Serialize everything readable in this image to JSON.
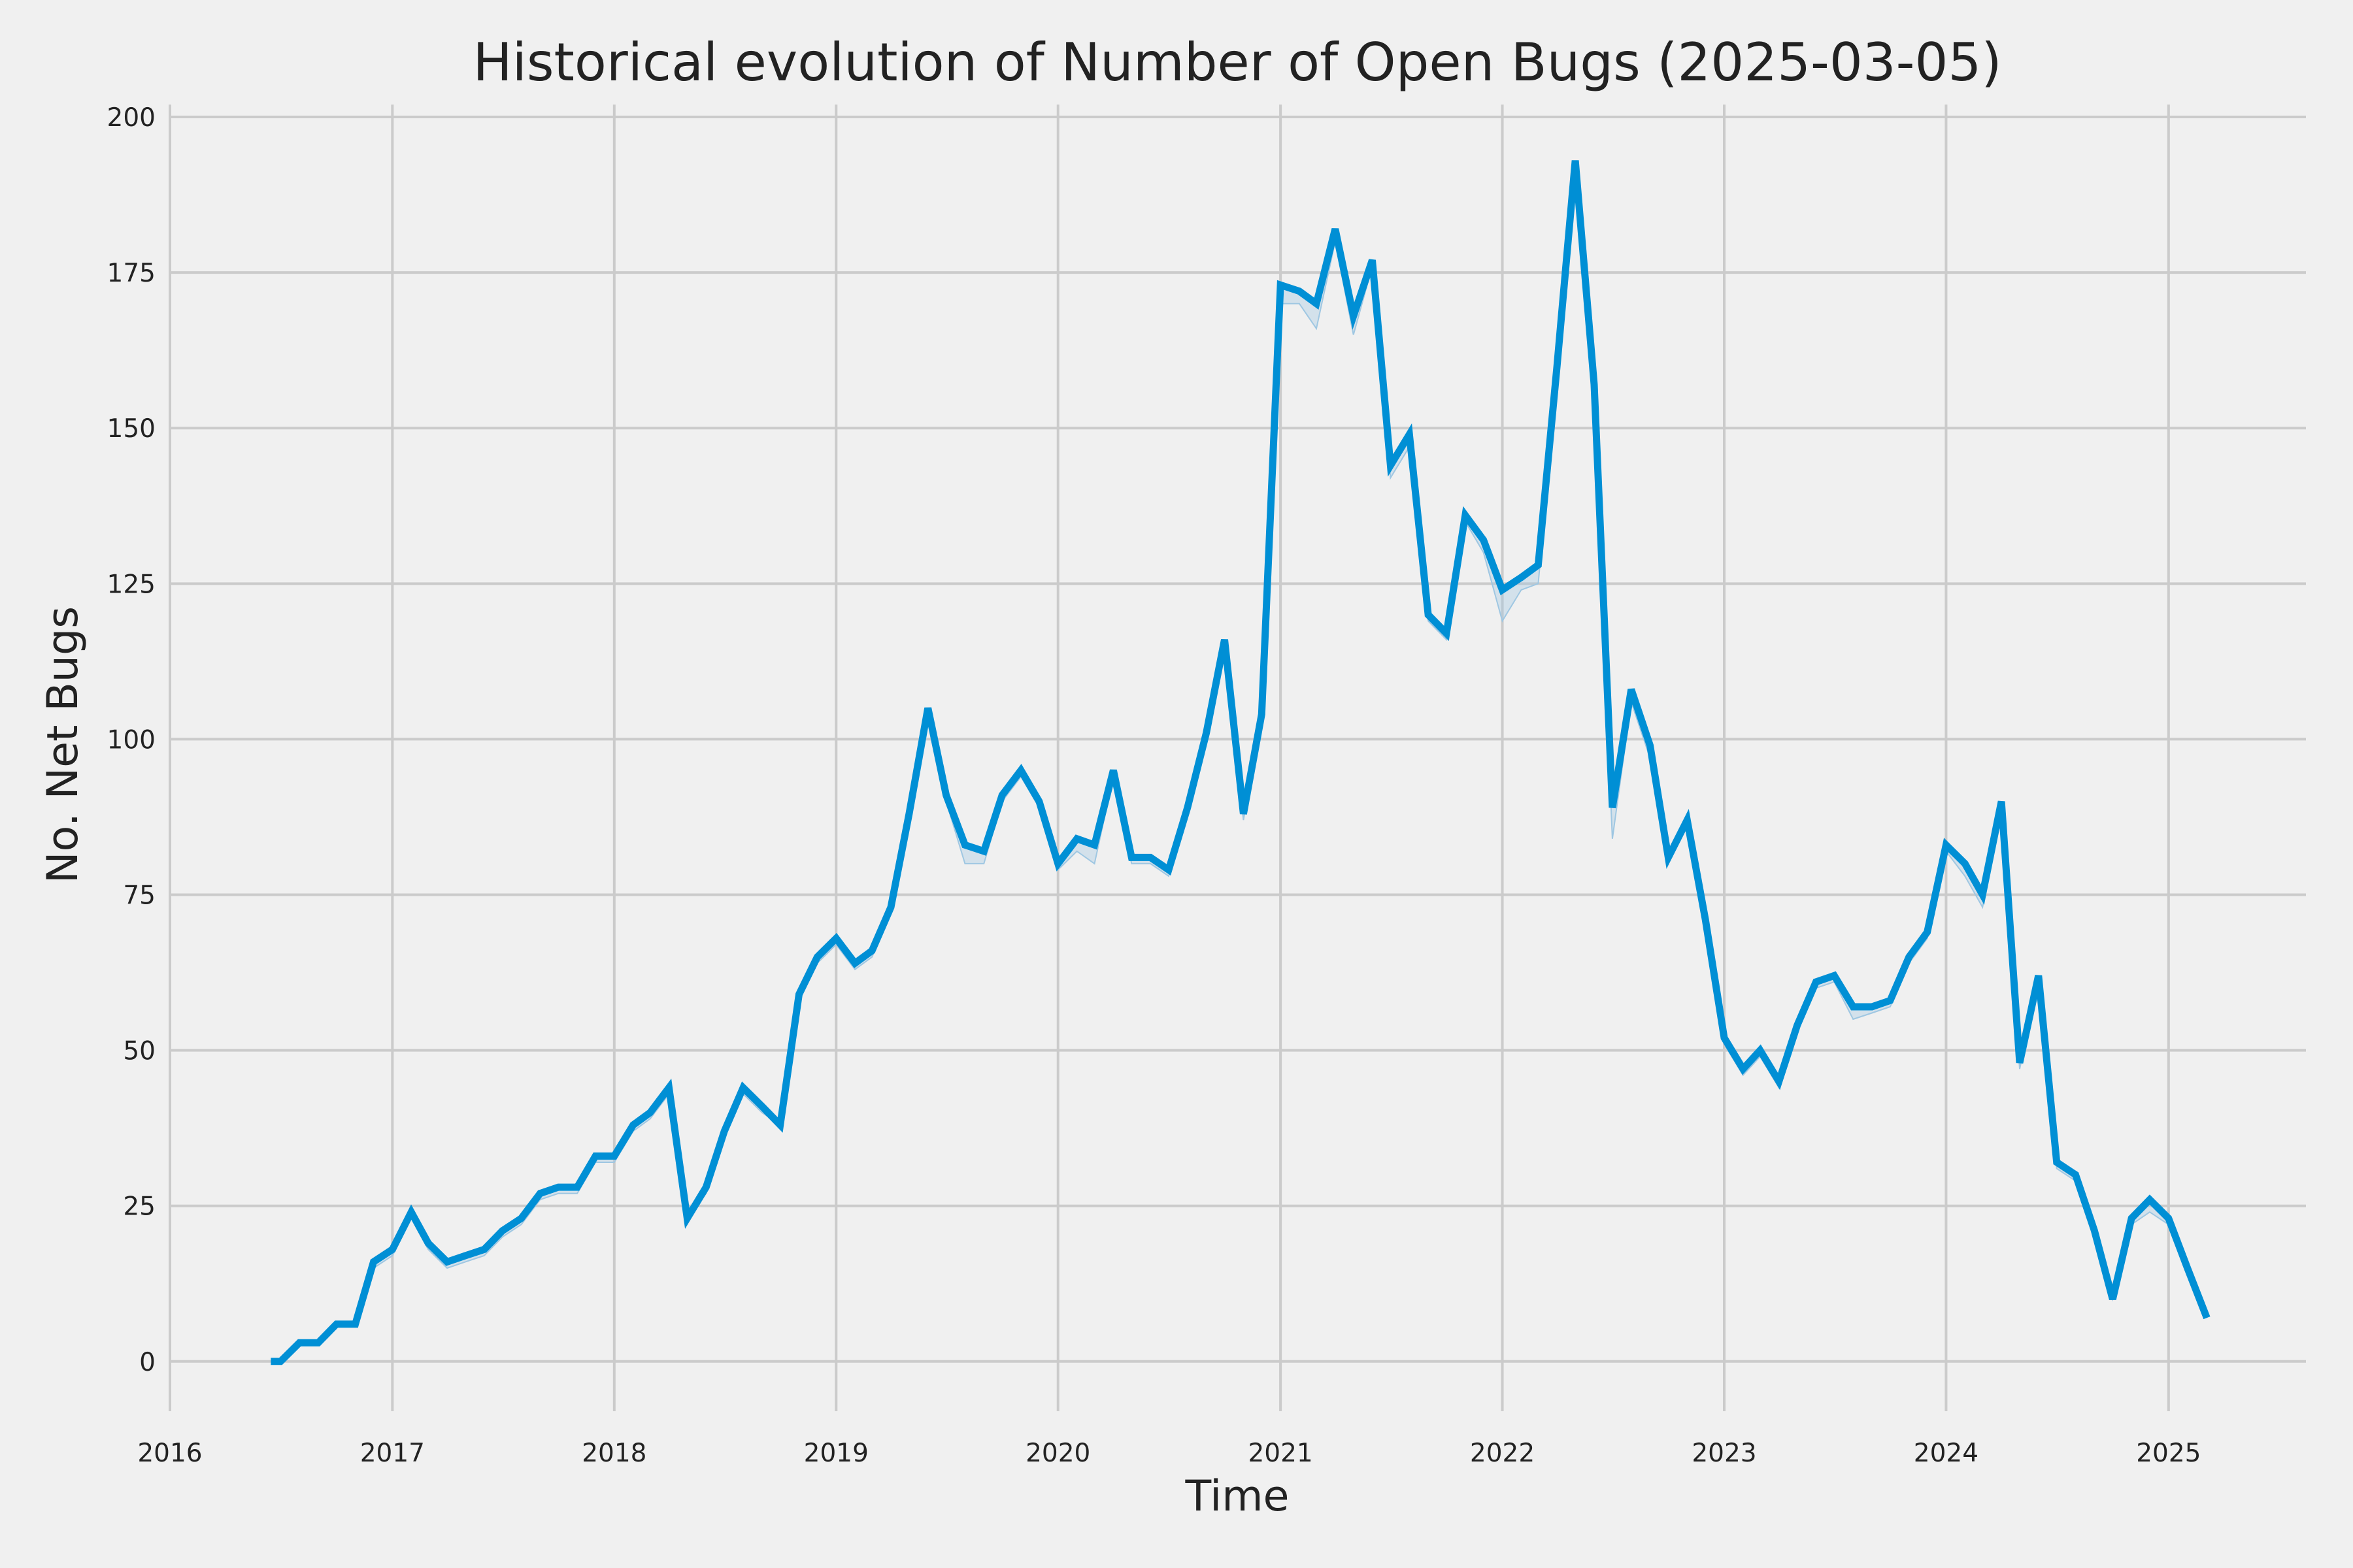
{
  "chart_data": {
    "type": "line",
    "title": "Historical evolution of Number of Open Bugs (2025-03-05)",
    "xlabel": "Time",
    "ylabel": "No. Net Bugs",
    "xlim": [
      "2016-01-01",
      "2025-08-15"
    ],
    "ylim": [
      -8,
      202
    ],
    "x_ticks": [
      "2016",
      "2017",
      "2018",
      "2019",
      "2020",
      "2021",
      "2022",
      "2023",
      "2024",
      "2025"
    ],
    "y_ticks": [
      0,
      25,
      50,
      75,
      100,
      125,
      150,
      175,
      200
    ],
    "grid": true,
    "legend": "none",
    "colors": {
      "line": "#008fd5",
      "band": "#9fc7e2",
      "grid": "#cbcbcb",
      "background": "#f0f0f0"
    },
    "series": [
      {
        "x": [
          "2016-06-15",
          "2016-07-01",
          "2016-08-01",
          "2016-09-01",
          "2016-10-01",
          "2016-11-01",
          "2016-12-01",
          "2017-01-01",
          "2017-02-01",
          "2017-03-01",
          "2017-04-01",
          "2017-05-01",
          "2017-06-01",
          "2017-07-01",
          "2017-08-01",
          "2017-09-01",
          "2017-10-01",
          "2017-11-01",
          "2017-12-01",
          "2018-01-01",
          "2018-02-01",
          "2018-03-01",
          "2018-04-01",
          "2018-05-01",
          "2018-06-01",
          "2018-07-01",
          "2018-08-01",
          "2018-09-01",
          "2018-10-01",
          "2018-11-01",
          "2018-12-01",
          "2019-01-01",
          "2019-02-01",
          "2019-03-01",
          "2019-04-01",
          "2019-05-01",
          "2019-06-01",
          "2019-07-01",
          "2019-08-01",
          "2019-09-01",
          "2019-10-01",
          "2019-11-01",
          "2019-12-01",
          "2020-01-01",
          "2020-02-01",
          "2020-03-01",
          "2020-04-01",
          "2020-05-01",
          "2020-06-01",
          "2020-07-01",
          "2020-08-01",
          "2020-09-01",
          "2020-10-01",
          "2020-11-01",
          "2020-12-01",
          "2021-01-01",
          "2021-02-01",
          "2021-03-01",
          "2021-04-01",
          "2021-05-01",
          "2021-06-01",
          "2021-07-01",
          "2021-08-01",
          "2021-09-01",
          "2021-10-01",
          "2021-11-01",
          "2021-12-01",
          "2022-01-01",
          "2022-02-01",
          "2022-03-01",
          "2022-04-01",
          "2022-05-01",
          "2022-06-01",
          "2022-07-01",
          "2022-08-01",
          "2022-09-01",
          "2022-10-01",
          "2022-11-01",
          "2022-12-01",
          "2023-01-01",
          "2023-02-01",
          "2023-03-01",
          "2023-04-01",
          "2023-05-01",
          "2023-06-01",
          "2023-07-01",
          "2023-08-01",
          "2023-09-01",
          "2023-10-01",
          "2023-11-01",
          "2023-12-01",
          "2024-01-01",
          "2024-02-01",
          "2024-03-01",
          "2024-04-01",
          "2024-05-01",
          "2024-06-01",
          "2024-07-01",
          "2024-08-01",
          "2024-09-01",
          "2024-10-01",
          "2024-11-01",
          "2024-12-01",
          "2025-01-01",
          "2025-02-01",
          "2025-03-05"
        ],
        "y": [
          0,
          0,
          3,
          3,
          6,
          6,
          16,
          18,
          24,
          19,
          16,
          17,
          18,
          21,
          23,
          27,
          28,
          28,
          33,
          33,
          38,
          40,
          44,
          23,
          28,
          37,
          44,
          41,
          38,
          59,
          65,
          68,
          64,
          66,
          73,
          88,
          105,
          91,
          83,
          82,
          91,
          95,
          90,
          80,
          84,
          83,
          95,
          81,
          81,
          79,
          89,
          101,
          116,
          88,
          104,
          173,
          172,
          170,
          182,
          168,
          177,
          144,
          149,
          120,
          117,
          136,
          132,
          124,
          126,
          128,
          160,
          193,
          157,
          89,
          108,
          99,
          81,
          87,
          71,
          52,
          47,
          50,
          45,
          54,
          61,
          62,
          57,
          57,
          58,
          65,
          69,
          83,
          80,
          75,
          90,
          48,
          62,
          32,
          30,
          21,
          10,
          23,
          26,
          23,
          15,
          7
        ],
        "band_low": [
          0,
          0,
          3,
          3,
          6,
          6,
          15,
          17,
          23,
          18,
          15,
          16,
          17,
          20,
          22,
          26,
          27,
          27,
          32,
          32,
          37,
          39,
          43,
          23,
          27,
          36,
          43,
          40,
          38,
          58,
          64,
          67,
          63,
          65,
          72,
          87,
          104,
          90,
          80,
          80,
          90,
          94,
          89,
          79,
          82,
          80,
          94,
          80,
          80,
          78,
          88,
          100,
          115,
          87,
          103,
          170,
          170,
          166,
          180,
          165,
          176,
          142,
          147,
          119,
          116,
          135,
          130,
          119,
          124,
          125,
          158,
          190,
          152,
          84,
          106,
          97,
          80,
          86,
          70,
          51,
          46,
          49,
          44,
          53,
          60,
          61,
          55,
          56,
          57,
          64,
          68,
          82,
          78,
          73,
          88,
          47,
          61,
          31,
          29,
          20,
          10,
          22,
          24,
          22,
          15,
          7
        ],
        "band_high": [
          0,
          0,
          3,
          3,
          6,
          6,
          16,
          18,
          24,
          19,
          16,
          17,
          18,
          21,
          23,
          27,
          28,
          28,
          33,
          33,
          38,
          40,
          44,
          23,
          28,
          37,
          44,
          41,
          38,
          59,
          65,
          68,
          64,
          66,
          73,
          88,
          105,
          91,
          83,
          82,
          91,
          95,
          90,
          80,
          84,
          83,
          95,
          81,
          81,
          79,
          89,
          101,
          116,
          88,
          104,
          173,
          172,
          170,
          182,
          168,
          177,
          144,
          149,
          120,
          117,
          136,
          132,
          124,
          126,
          128,
          160,
          193,
          157,
          89,
          108,
          99,
          81,
          87,
          71,
          52,
          47,
          50,
          45,
          54,
          61,
          62,
          57,
          57,
          58,
          65,
          69,
          83,
          80,
          75,
          90,
          48,
          62,
          32,
          30,
          21,
          10,
          23,
          26,
          23,
          15,
          7
        ]
      }
    ]
  }
}
